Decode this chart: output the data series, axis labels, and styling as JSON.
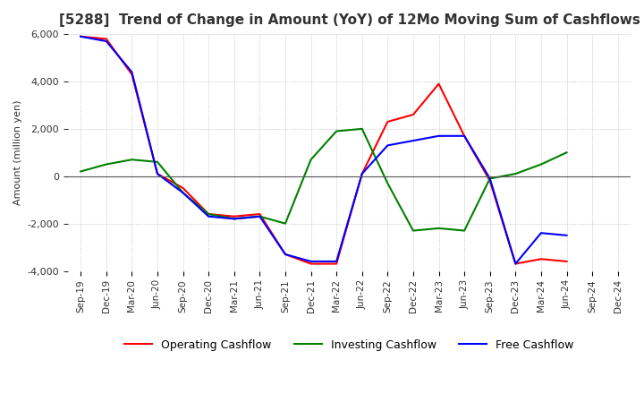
{
  "title": "[5288]  Trend of Change in Amount (YoY) of 12Mo Moving Sum of Cashflows",
  "ylabel": "Amount (million yen)",
  "xlabels": [
    "Sep-19",
    "Dec-19",
    "Mar-20",
    "Jun-20",
    "Sep-20",
    "Dec-20",
    "Mar-21",
    "Jun-21",
    "Sep-21",
    "Dec-21",
    "Mar-22",
    "Jun-22",
    "Sep-22",
    "Dec-22",
    "Mar-23",
    "Jun-23",
    "Sep-23",
    "Dec-23",
    "Mar-24",
    "Jun-24",
    "Sep-24",
    "Dec-24"
  ],
  "operating": [
    5900,
    5800,
    4300,
    100,
    -500,
    -1600,
    -1700,
    -1600,
    -3300,
    -3700,
    -3700,
    100,
    2300,
    2600,
    3900,
    1700,
    -200,
    -3700,
    -3500,
    -3600,
    null,
    null
  ],
  "investing": [
    200,
    500,
    700,
    600,
    -700,
    -1600,
    -1800,
    -1700,
    -2000,
    700,
    1900,
    2000,
    -300,
    -2300,
    -2200,
    -2300,
    -100,
    100,
    500,
    1000,
    null,
    null
  ],
  "free": [
    5900,
    5700,
    4400,
    100,
    -700,
    -1700,
    -1800,
    -1700,
    -3300,
    -3600,
    -3600,
    100,
    1300,
    1500,
    1700,
    1700,
    -100,
    -3700,
    -2400,
    -2500,
    null,
    null
  ],
  "ylim": [
    -4000,
    6000
  ],
  "yticks": [
    -4000,
    -2000,
    0,
    2000,
    4000,
    6000
  ],
  "operating_color": "#ff0000",
  "investing_color": "#008000",
  "free_color": "#0000ff",
  "legend_labels": [
    "Operating Cashflow",
    "Investing Cashflow",
    "Free Cashflow"
  ],
  "background_color": "#ffffff",
  "grid_color": "#aaaaaa",
  "title_color": "#333333"
}
